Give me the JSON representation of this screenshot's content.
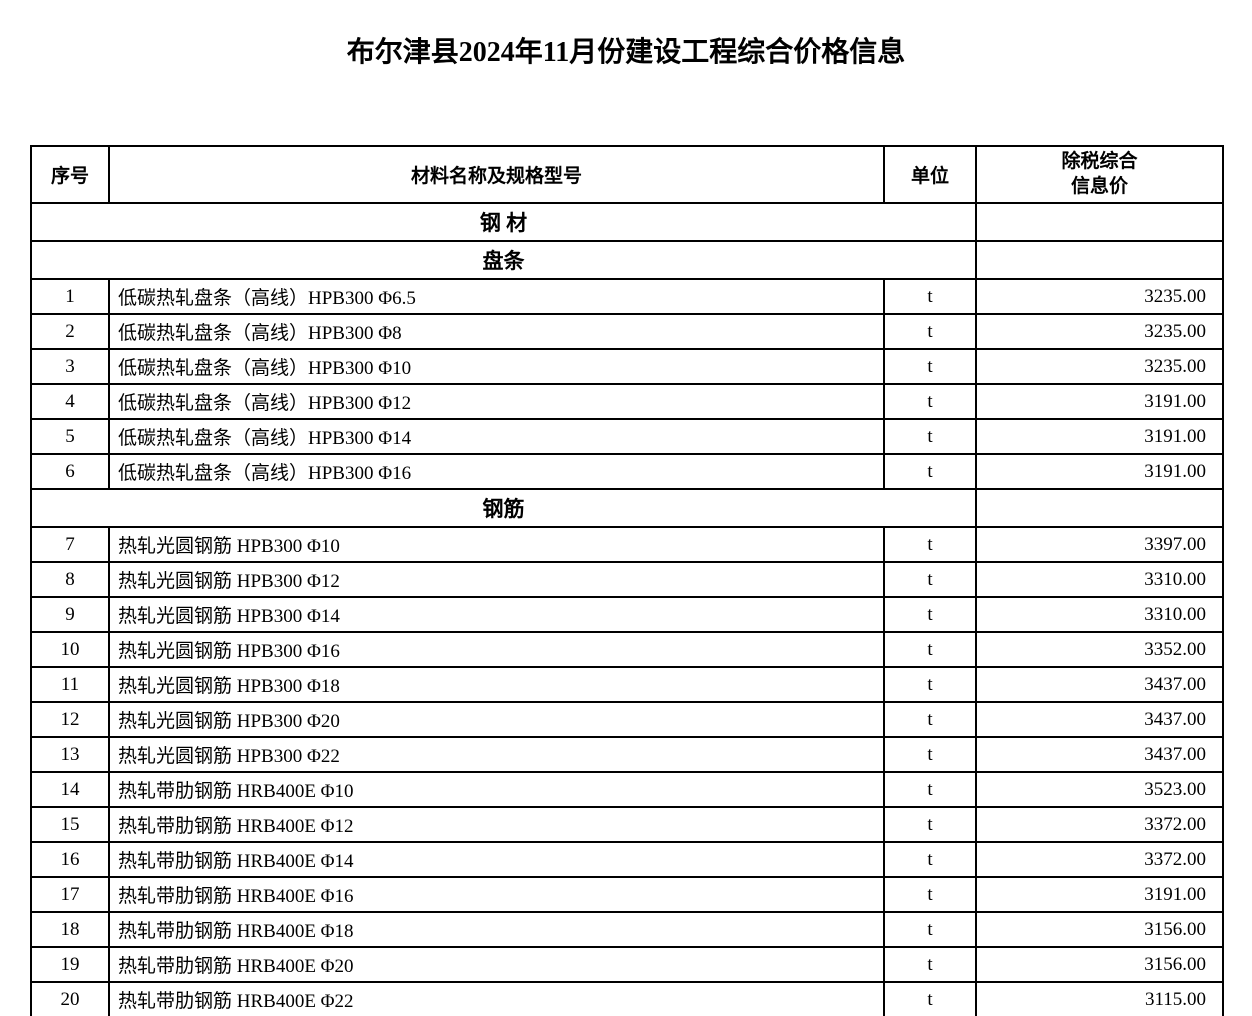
{
  "title": "布尔津县2024年11月份建设工程综合价格信息",
  "headers": {
    "seq": "序号",
    "name": "材料名称及规格型号",
    "unit": "单位",
    "price_line1": "除税综合",
    "price_line2": "信息价"
  },
  "column_widths": {
    "seq": 78,
    "name": 775,
    "unit": 92,
    "price": 247
  },
  "colors": {
    "background": "#ffffff",
    "text": "#000000",
    "border": "#000000"
  },
  "rows": [
    {
      "type": "section",
      "label": "钢  材"
    },
    {
      "type": "section",
      "label": "盘条"
    },
    {
      "type": "data",
      "seq": "1",
      "name": "低碳热轧盘条（高线）HPB300 Φ6.5",
      "unit": "t",
      "price": "3235.00"
    },
    {
      "type": "data",
      "seq": "2",
      "name": "低碳热轧盘条（高线）HPB300 Φ8",
      "unit": "t",
      "price": "3235.00"
    },
    {
      "type": "data",
      "seq": "3",
      "name": "低碳热轧盘条（高线）HPB300 Φ10",
      "unit": "t",
      "price": "3235.00"
    },
    {
      "type": "data",
      "seq": "4",
      "name": "低碳热轧盘条（高线）HPB300 Φ12",
      "unit": "t",
      "price": "3191.00"
    },
    {
      "type": "data",
      "seq": "5",
      "name": "低碳热轧盘条（高线）HPB300 Φ14",
      "unit": "t",
      "price": "3191.00"
    },
    {
      "type": "data",
      "seq": "6",
      "name": "低碳热轧盘条（高线）HPB300 Φ16",
      "unit": "t",
      "price": "3191.00"
    },
    {
      "type": "section",
      "label": "钢筋"
    },
    {
      "type": "data",
      "seq": "7",
      "name": "热轧光圆钢筋 HPB300 Φ10",
      "unit": "t",
      "price": "3397.00"
    },
    {
      "type": "data",
      "seq": "8",
      "name": "热轧光圆钢筋 HPB300 Φ12",
      "unit": "t",
      "price": "3310.00"
    },
    {
      "type": "data",
      "seq": "9",
      "name": "热轧光圆钢筋 HPB300 Φ14",
      "unit": "t",
      "price": "3310.00"
    },
    {
      "type": "data",
      "seq": "10",
      "name": "热轧光圆钢筋 HPB300 Φ16",
      "unit": "t",
      "price": "3352.00"
    },
    {
      "type": "data",
      "seq": "11",
      "name": "热轧光圆钢筋 HPB300 Φ18",
      "unit": "t",
      "price": "3437.00"
    },
    {
      "type": "data",
      "seq": "12",
      "name": "热轧光圆钢筋 HPB300 Φ20",
      "unit": "t",
      "price": "3437.00"
    },
    {
      "type": "data",
      "seq": "13",
      "name": "热轧光圆钢筋 HPB300 Φ22",
      "unit": "t",
      "price": "3437.00"
    },
    {
      "type": "data",
      "seq": "14",
      "name": "热轧带肋钢筋 HRB400E Φ10",
      "unit": "t",
      "price": "3523.00"
    },
    {
      "type": "data",
      "seq": "15",
      "name": "热轧带肋钢筋 HRB400E Φ12",
      "unit": "t",
      "price": "3372.00"
    },
    {
      "type": "data",
      "seq": "16",
      "name": "热轧带肋钢筋 HRB400E Φ14",
      "unit": "t",
      "price": "3372.00"
    },
    {
      "type": "data",
      "seq": "17",
      "name": "热轧带肋钢筋 HRB400E Φ16",
      "unit": "t",
      "price": "3191.00"
    },
    {
      "type": "data",
      "seq": "18",
      "name": "热轧带肋钢筋 HRB400E Φ18",
      "unit": "t",
      "price": "3156.00"
    },
    {
      "type": "data",
      "seq": "19",
      "name": "热轧带肋钢筋 HRB400E Φ20",
      "unit": "t",
      "price": "3156.00"
    },
    {
      "type": "data",
      "seq": "20",
      "name": "热轧带肋钢筋 HRB400E Φ22",
      "unit": "t",
      "price": "3115.00"
    }
  ]
}
